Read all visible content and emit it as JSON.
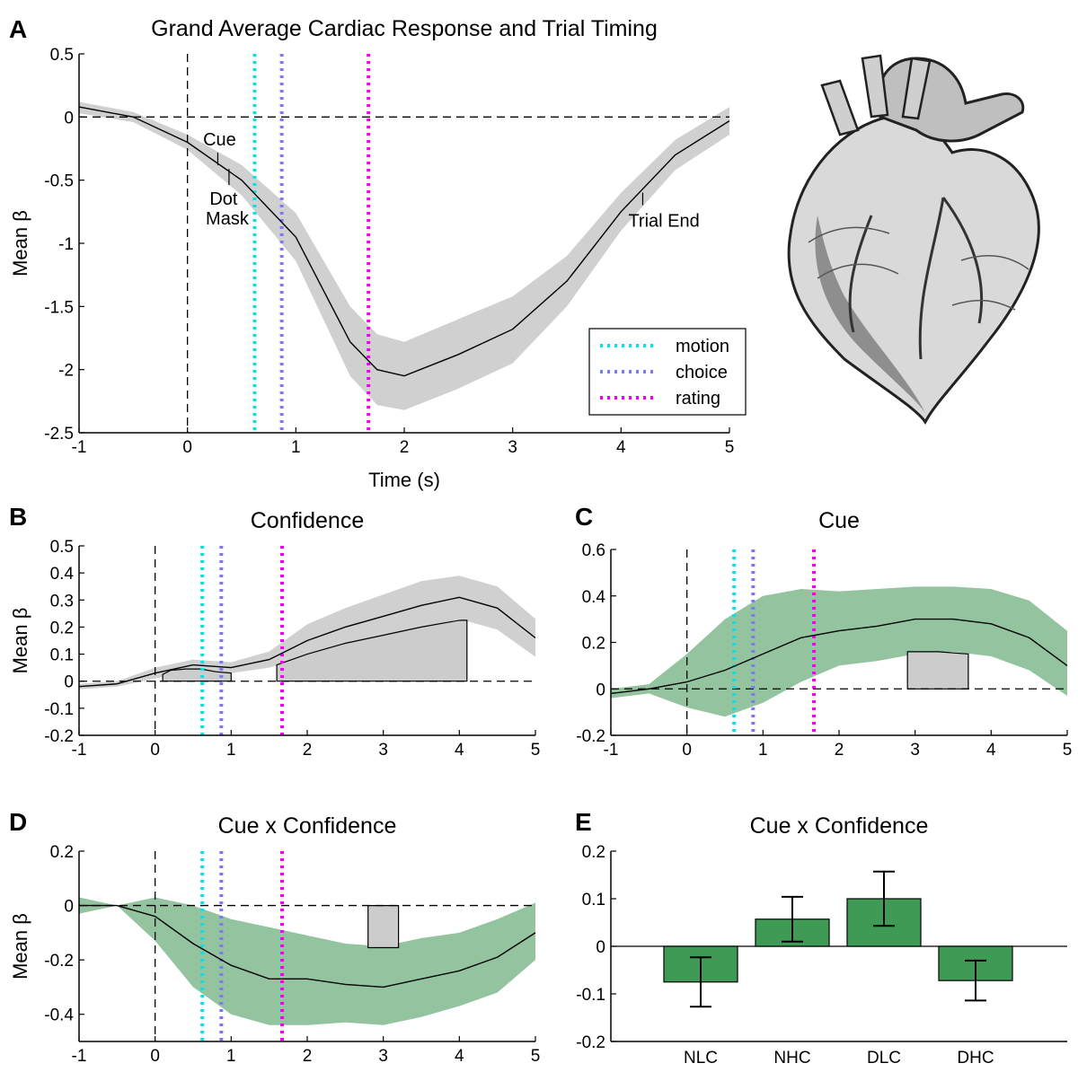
{
  "figure": {
    "colors": {
      "motion": "#00e5e5",
      "choice": "#7b7bea",
      "rating": "#ee00ee",
      "gray_band": "#d0d0d0",
      "green_band": "#93c49f",
      "bar_green": "#3f9a56",
      "sig_gray": "#cccccc"
    },
    "heart_label": "heart-illustration"
  },
  "chart_data": [
    {
      "panel": "A",
      "type": "line",
      "title": "Grand Average Cardiac Response and Trial Timing",
      "xlabel": "Time (s)",
      "ylabel": "Mean β",
      "xlim": [
        -1,
        5
      ],
      "ylim": [
        -2.5,
        0.5
      ],
      "xticks": [
        "-1",
        "0",
        "1",
        "2",
        "3",
        "4",
        "5"
      ],
      "yticks": [
        "0.5",
        "0",
        "-0.5",
        "-1",
        "-1.5",
        "-2",
        "-2.5"
      ],
      "band_color": "gray",
      "x": [
        -1,
        -0.5,
        0,
        0.5,
        1,
        1.5,
        1.75,
        2,
        2.5,
        3,
        3.5,
        4,
        4.5,
        5
      ],
      "mean": [
        0.08,
        0.0,
        -0.2,
        -0.5,
        -0.95,
        -1.78,
        -2.0,
        -2.05,
        -1.88,
        -1.68,
        -1.3,
        -0.75,
        -0.3,
        -0.03
      ],
      "band_upper": [
        0.12,
        0.04,
        -0.14,
        -0.38,
        -0.76,
        -1.5,
        -1.72,
        -1.78,
        -1.6,
        -1.42,
        -1.1,
        -0.6,
        -0.18,
        0.08
      ],
      "band_lower": [
        0.03,
        -0.04,
        -0.26,
        -0.62,
        -1.14,
        -2.05,
        -2.28,
        -2.32,
        -2.15,
        -1.95,
        -1.5,
        -0.9,
        -0.42,
        -0.14
      ],
      "event_lines": [
        {
          "name": "motion",
          "x": 0.62
        },
        {
          "name": "choice",
          "x": 0.87
        },
        {
          "name": "rating",
          "x": 1.67
        }
      ],
      "legend": [
        "motion",
        "choice",
        "rating"
      ],
      "legend_position": "bottom-right",
      "annotations": [
        {
          "text": "Cue",
          "x": 0.28
        },
        {
          "text": "Dot",
          "x": 0.4
        },
        {
          "text": "Mask",
          "x": 0.4
        },
        {
          "text": "Trial End",
          "x": 4.2
        }
      ]
    },
    {
      "panel": "B",
      "type": "line",
      "title": "Confidence",
      "xlabel": "",
      "ylabel": "Mean β",
      "xlim": [
        -1,
        5
      ],
      "ylim": [
        -0.2,
        0.5
      ],
      "xticks": [
        "-1",
        "0",
        "1",
        "2",
        "3",
        "4",
        "5"
      ],
      "yticks": [
        "0.5",
        "0.4",
        "0.3",
        "0.2",
        "0.1",
        "0",
        "-0.1",
        "-0.2"
      ],
      "band_color": "gray",
      "x": [
        -1,
        -0.5,
        0,
        0.5,
        1,
        1.5,
        2,
        2.5,
        3,
        3.5,
        4,
        4.5,
        5
      ],
      "mean": [
        -0.02,
        -0.01,
        0.03,
        0.06,
        0.05,
        0.08,
        0.15,
        0.2,
        0.24,
        0.28,
        0.31,
        0.27,
        0.16
      ],
      "band_upper": [
        -0.01,
        0.0,
        0.05,
        0.08,
        0.07,
        0.11,
        0.21,
        0.27,
        0.32,
        0.37,
        0.39,
        0.35,
        0.23
      ],
      "band_lower": [
        -0.03,
        -0.02,
        0.01,
        0.04,
        0.03,
        0.05,
        0.09,
        0.13,
        0.16,
        0.19,
        0.23,
        0.19,
        0.09
      ],
      "sig_regions": [
        {
          "x": [
            0.1,
            0.2,
            0.4,
            0.6,
            0.8,
            1.0
          ],
          "top": [
            0.025,
            0.04,
            0.045,
            0.045,
            0.035,
            0.03
          ]
        },
        {
          "x": [
            1.6,
            2.0,
            2.5,
            3.0,
            3.5,
            4.0,
            4.1
          ],
          "top": [
            0.06,
            0.1,
            0.14,
            0.17,
            0.2,
            0.225,
            0.225
          ]
        }
      ],
      "event_lines": [
        {
          "name": "motion",
          "x": 0.62
        },
        {
          "name": "choice",
          "x": 0.87
        },
        {
          "name": "rating",
          "x": 1.67
        }
      ]
    },
    {
      "panel": "C",
      "type": "line",
      "title": "Cue",
      "xlabel": "",
      "ylabel": "",
      "xlim": [
        -1,
        5
      ],
      "ylim": [
        -0.2,
        0.6
      ],
      "xticks": [
        "-1",
        "0",
        "1",
        "2",
        "3",
        "4",
        "5"
      ],
      "yticks": [
        "0.6",
        "0.4",
        "0.2",
        "0",
        "-0.2"
      ],
      "band_color": "green",
      "x": [
        -1,
        -0.5,
        0,
        0.5,
        1,
        1.5,
        2,
        2.5,
        3,
        3.5,
        4,
        4.5,
        5
      ],
      "mean": [
        -0.02,
        0.0,
        0.03,
        0.08,
        0.15,
        0.22,
        0.25,
        0.27,
        0.3,
        0.3,
        0.28,
        0.22,
        0.1
      ],
      "band_upper": [
        0.0,
        0.02,
        0.15,
        0.3,
        0.4,
        0.43,
        0.42,
        0.43,
        0.44,
        0.44,
        0.43,
        0.38,
        0.25
      ],
      "band_lower": [
        -0.04,
        -0.02,
        -0.08,
        -0.12,
        -0.06,
        0.03,
        0.1,
        0.12,
        0.15,
        0.16,
        0.14,
        0.08,
        -0.03
      ],
      "sig_regions": [
        {
          "x": [
            2.9,
            3.3,
            3.7
          ],
          "top": [
            0.16,
            0.16,
            0.15
          ]
        }
      ],
      "event_lines": [
        {
          "name": "motion",
          "x": 0.62
        },
        {
          "name": "choice",
          "x": 0.87
        },
        {
          "name": "rating",
          "x": 1.67
        }
      ]
    },
    {
      "panel": "D",
      "type": "line",
      "title": "Cue x Confidence",
      "xlabel": "",
      "ylabel": "Mean β",
      "xlim": [
        -1,
        5
      ],
      "ylim": [
        -0.5,
        0.2
      ],
      "xticks": [
        "-1",
        "0",
        "1",
        "2",
        "3",
        "4",
        "5"
      ],
      "yticks": [
        "0.2",
        "0",
        "-0.2",
        "-0.4"
      ],
      "band_color": "green",
      "x": [
        -1,
        -0.5,
        0,
        0.5,
        1,
        1.5,
        2,
        2.5,
        3,
        3.5,
        4,
        4.5,
        5
      ],
      "mean": [
        0.0,
        0.0,
        -0.04,
        -0.14,
        -0.22,
        -0.27,
        -0.27,
        -0.29,
        -0.3,
        -0.27,
        -0.24,
        -0.19,
        -0.1
      ],
      "band_upper": [
        0.03,
        0.0,
        0.03,
        0.0,
        -0.05,
        -0.08,
        -0.11,
        -0.14,
        -0.15,
        -0.12,
        -0.1,
        -0.05,
        0.01
      ],
      "band_lower": [
        -0.03,
        0.0,
        -0.13,
        -0.3,
        -0.4,
        -0.44,
        -0.44,
        -0.43,
        -0.44,
        -0.41,
        -0.37,
        -0.32,
        -0.2
      ],
      "sig_regions": [
        {
          "x": [
            2.8,
            3.2
          ],
          "top": [
            -0.155,
            -0.155
          ]
        }
      ],
      "event_lines": [
        {
          "name": "motion",
          "x": 0.62
        },
        {
          "name": "choice",
          "x": 0.87
        },
        {
          "name": "rating",
          "x": 1.67
        }
      ]
    },
    {
      "panel": "E",
      "type": "bar",
      "title": "Cue x Confidence",
      "xlabel": "",
      "ylabel": "",
      "categories": [
        "NLC",
        "NHC",
        "DLC",
        "DHC"
      ],
      "values": [
        -0.075,
        0.057,
        0.1,
        -0.072
      ],
      "errors": [
        0.052,
        0.047,
        0.057,
        0.042
      ],
      "ylim": [
        -0.2,
        0.2
      ],
      "yticks": [
        "0.2",
        "0.1",
        "0",
        "-0.1",
        "-0.2"
      ]
    }
  ]
}
